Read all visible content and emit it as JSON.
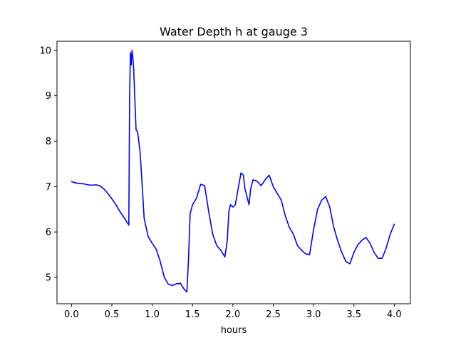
{
  "chart_data": {
    "type": "line",
    "title": "Water Depth h at gauge 3",
    "xlabel": "hours",
    "ylabel": "",
    "xlim": [
      -0.18,
      4.2
    ],
    "ylim": [
      4.42,
      10.2
    ],
    "xticks": [
      0.0,
      0.5,
      1.0,
      1.5,
      2.0,
      2.5,
      3.0,
      3.5,
      4.0
    ],
    "xtick_labels": [
      "0.0",
      "0.5",
      "1.0",
      "1.5",
      "2.0",
      "2.5",
      "3.0",
      "3.5",
      "4.0"
    ],
    "yticks": [
      5,
      6,
      7,
      8,
      9,
      10
    ],
    "ytick_labels": [
      "5",
      "6",
      "7",
      "8",
      "9",
      "10"
    ],
    "grid": false,
    "legend": "none",
    "series": [
      {
        "color": "#0000ff",
        "x": [
          0.0,
          0.05,
          0.1,
          0.15,
          0.2,
          0.25,
          0.3,
          0.35,
          0.4,
          0.45,
          0.5,
          0.55,
          0.6,
          0.65,
          0.7,
          0.71,
          0.72,
          0.73,
          0.74,
          0.75,
          0.76,
          0.77,
          0.8,
          0.82,
          0.85,
          0.87,
          0.9,
          0.95,
          1.0,
          1.05,
          1.1,
          1.15,
          1.2,
          1.25,
          1.3,
          1.35,
          1.4,
          1.43,
          1.45,
          1.47,
          1.5,
          1.55,
          1.6,
          1.65,
          1.7,
          1.75,
          1.8,
          1.85,
          1.9,
          1.93,
          1.95,
          1.97,
          2.0,
          2.03,
          2.05,
          2.1,
          2.13,
          2.15,
          2.2,
          2.22,
          2.25,
          2.3,
          2.35,
          2.4,
          2.45,
          2.5,
          2.55,
          2.6,
          2.65,
          2.7,
          2.75,
          2.8,
          2.85,
          2.9,
          2.95,
          3.0,
          3.05,
          3.1,
          3.15,
          3.2,
          3.25,
          3.3,
          3.35,
          3.4,
          3.45,
          3.5,
          3.55,
          3.6,
          3.65,
          3.7,
          3.75,
          3.8,
          3.85,
          3.9,
          3.95,
          4.0
        ],
        "y": [
          7.11,
          7.08,
          7.07,
          7.06,
          7.04,
          7.03,
          7.04,
          7.02,
          6.95,
          6.85,
          6.73,
          6.6,
          6.45,
          6.32,
          6.18,
          6.15,
          9.0,
          9.95,
          9.68,
          10.0,
          9.85,
          9.6,
          8.25,
          8.2,
          7.75,
          7.2,
          6.3,
          5.9,
          5.75,
          5.62,
          5.35,
          5.0,
          4.85,
          4.82,
          4.86,
          4.87,
          4.73,
          4.68,
          5.4,
          6.4,
          6.6,
          6.75,
          7.05,
          7.02,
          6.45,
          5.95,
          5.7,
          5.6,
          5.45,
          5.8,
          6.45,
          6.6,
          6.55,
          6.6,
          6.8,
          7.3,
          7.25,
          6.95,
          6.6,
          6.95,
          7.15,
          7.12,
          7.02,
          7.15,
          7.25,
          7.0,
          6.85,
          6.7,
          6.35,
          6.1,
          5.95,
          5.7,
          5.6,
          5.52,
          5.5,
          6.05,
          6.5,
          6.7,
          6.78,
          6.55,
          6.1,
          5.8,
          5.55,
          5.35,
          5.3,
          5.55,
          5.72,
          5.82,
          5.88,
          5.75,
          5.55,
          5.42,
          5.42,
          5.65,
          5.95,
          6.17
        ]
      }
    ]
  }
}
